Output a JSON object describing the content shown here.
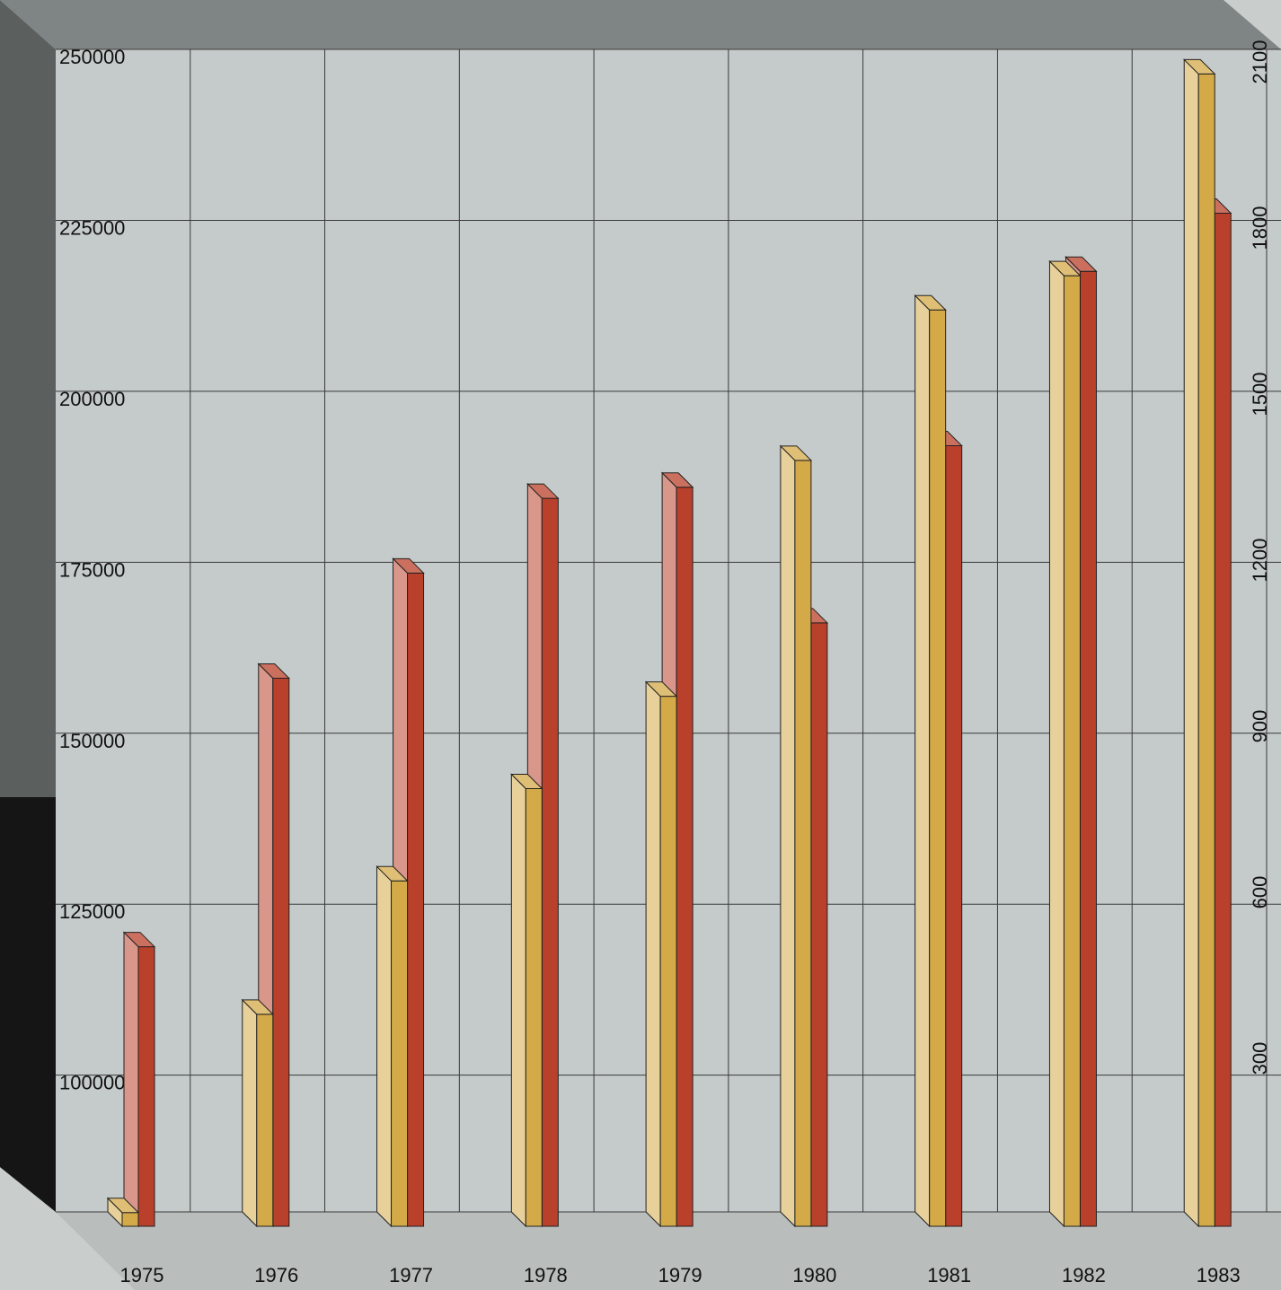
{
  "chart_data": {
    "type": "bar",
    "title": "",
    "xlabel": "",
    "categories": [
      "1975",
      "1976",
      "1977",
      "1978",
      "1979",
      "1980",
      "1981",
      "1982",
      "1983"
    ],
    "y_left": {
      "ticks": [
        "100000",
        "125000",
        "150000",
        "175000",
        "200000",
        "225000",
        "250000"
      ],
      "range": [
        80000,
        250000
      ]
    },
    "y_right": {
      "ticks": [
        "300",
        "600",
        "900",
        "1200",
        "1500",
        "1800",
        "2100"
      ],
      "range": [
        0,
        2100
      ]
    },
    "series": [
      {
        "axis": "left",
        "color": "#d4aa48",
        "values": [
          82000,
          111000,
          130500,
          144000,
          157500,
          192000,
          214000,
          219000,
          248500
        ]
      },
      {
        "axis": "right",
        "color": "#b9402a",
        "values": [
          505,
          990,
          1180,
          1315,
          1335,
          1090,
          1410,
          1725,
          1830
        ]
      }
    ],
    "grid": true,
    "legend": "none",
    "background": "#c9cdcc"
  }
}
